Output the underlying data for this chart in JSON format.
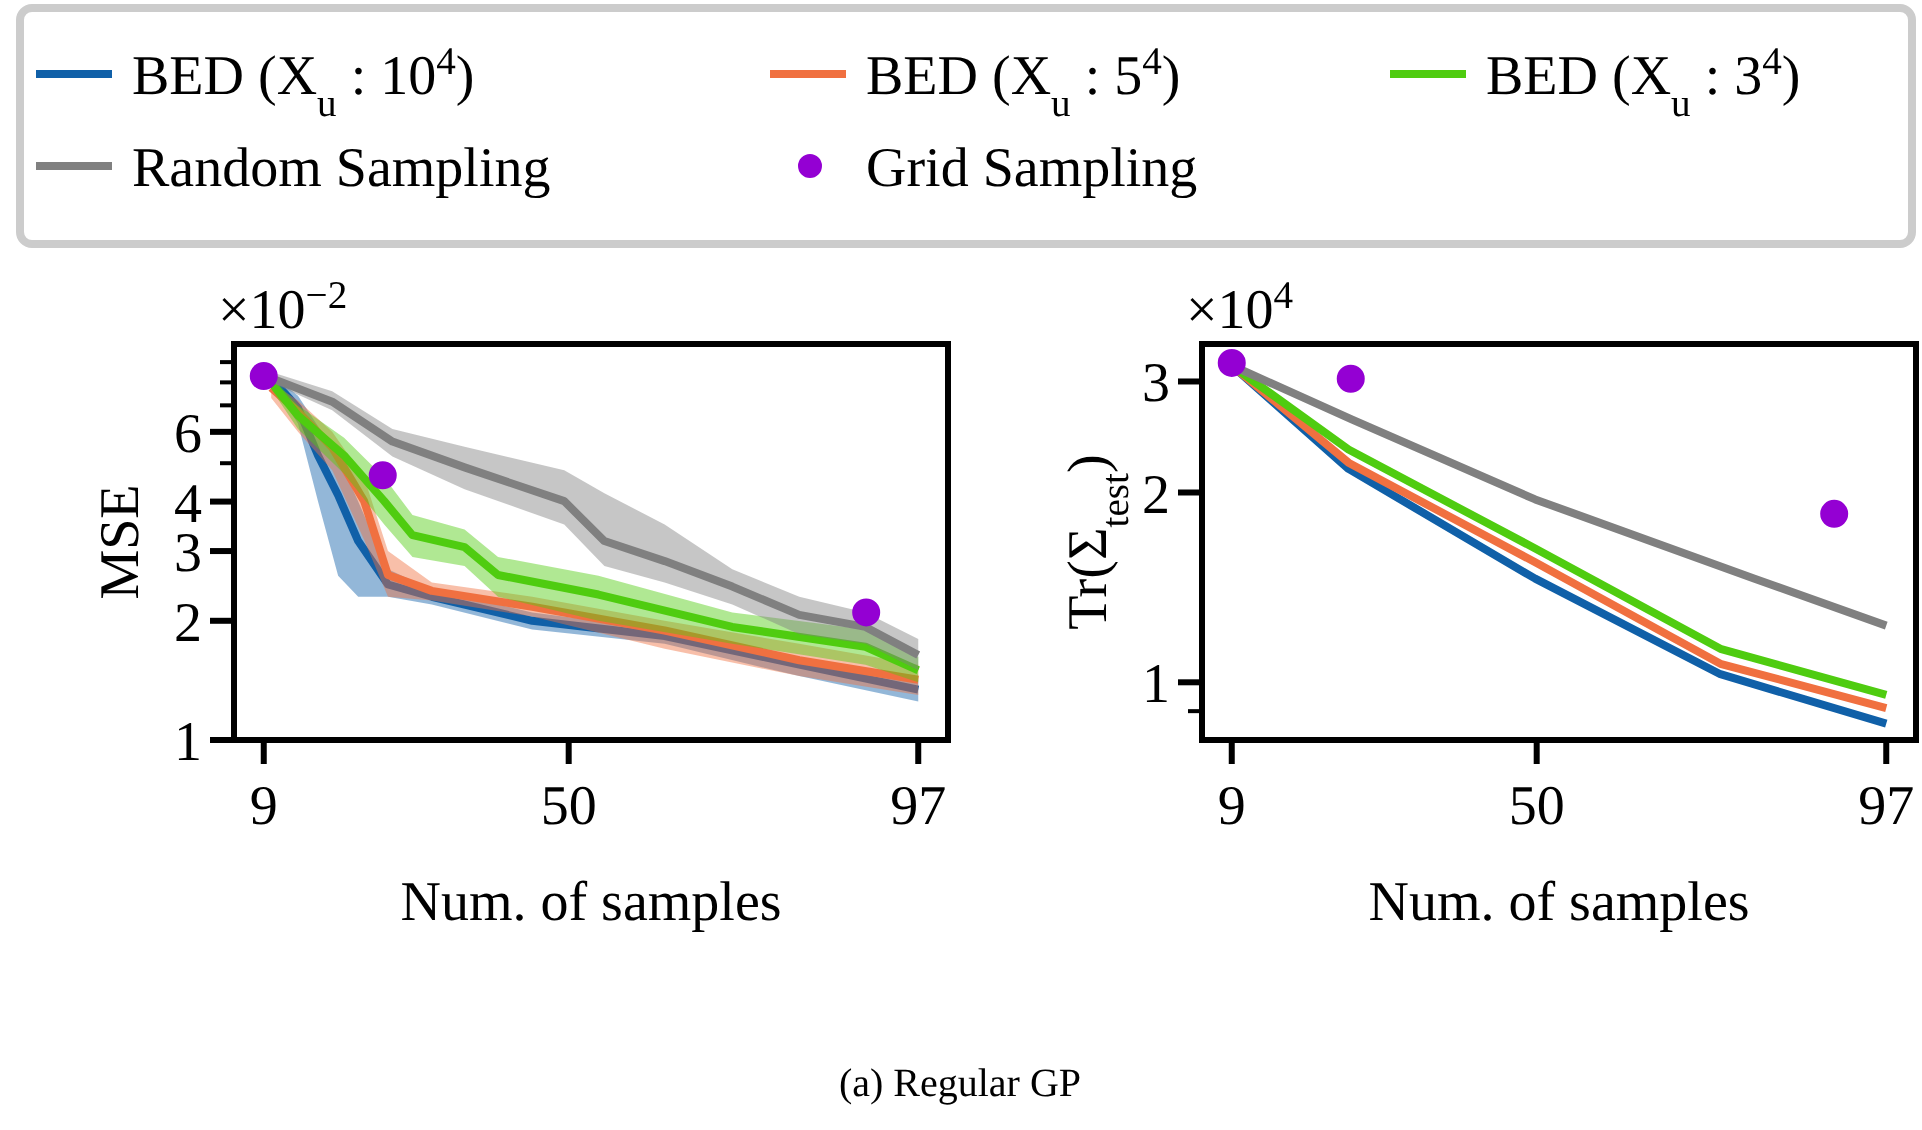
{
  "chart_data": [
    {
      "type": "line",
      "xlabel": "Num. of samples",
      "ylabel": "MSE",
      "log": "y",
      "xlim": [
        5,
        101
      ],
      "xticks": [
        9,
        50,
        97
      ],
      "ylim": [
        1,
        10
      ],
      "yticks": [
        1,
        2,
        3,
        4,
        {
          "value": 5,
          "label": null
        },
        6,
        {
          "value": 7,
          "label": null
        },
        {
          "value": 8,
          "label": null
        },
        {
          "value": 9,
          "label": null
        }
      ],
      "legend": "top",
      "annotations": [
        "×10$^{−2}$",
        "(a) Regular GP"
      ],
      "series": [
        {
          "name": "BED (X$_{u}$ : 10$^{4}$)",
          "color": "#1060a8",
          "x": [
            10,
            13.6,
            16.3,
            19,
            21.7,
            25.7,
            31.6,
            45.1,
            62.9,
            81,
            97
          ],
          "values": [
            8.2,
            6.9,
            5.23,
            4.15,
            3.18,
            2.47,
            2.3,
            2.0,
            1.83,
            1.55,
            1.34
          ],
          "lower": [
            8.0,
            6.3,
            4.0,
            2.6,
            2.3,
            2.3,
            2.2,
            1.9,
            1.75,
            1.45,
            1.25
          ],
          "upper": [
            8.4,
            7.4,
            6.2,
            5.2,
            4.0,
            2.7,
            2.4,
            2.1,
            1.9,
            1.6,
            1.42
          ]
        },
        {
          "name": "BED (X$_{u}$ : 5$^{4}$)",
          "color": "#f07040",
          "x": [
            10,
            13.6,
            18.2,
            22.5,
            25.7,
            31.6,
            45.1,
            62.9,
            81,
            97
          ],
          "values": [
            7.75,
            6.75,
            5.48,
            4.01,
            2.61,
            2.38,
            2.17,
            1.89,
            1.59,
            1.42
          ],
          "lower": [
            7.3,
            6.0,
            4.8,
            3.2,
            2.3,
            2.25,
            2.05,
            1.7,
            1.45,
            1.3
          ],
          "upper": [
            8.0,
            7.2,
            6.0,
            4.6,
            3.0,
            2.5,
            2.3,
            2.0,
            1.75,
            1.55
          ]
        },
        {
          "name": "BED (X$_{u}$ : 3$^{4}$)",
          "color": "#4fcc10",
          "x": [
            10,
            13.6,
            19.8,
            25.2,
            29,
            36,
            40.5,
            54,
            72,
            89.9,
            97
          ],
          "values": [
            8.0,
            6.6,
            5.23,
            4.01,
            3.29,
            3.07,
            2.61,
            2.33,
            1.93,
            1.72,
            1.5
          ],
          "lower": [
            7.7,
            6.1,
            4.7,
            3.5,
            2.9,
            2.75,
            2.3,
            2.0,
            1.75,
            1.55,
            1.4
          ],
          "upper": [
            8.3,
            7.0,
            5.8,
            4.6,
            3.7,
            3.4,
            2.9,
            2.6,
            2.1,
            1.9,
            1.62
          ]
        },
        {
          "name": "Random Sampling",
          "color": "#808080",
          "x": [
            10,
            18.2,
            26.3,
            36,
            49.4,
            54.8,
            62.9,
            72,
            81,
            89.9,
            97
          ],
          "values": [
            8.2,
            7.15,
            5.67,
            4.88,
            4.01,
            3.18,
            2.83,
            2.44,
            2.07,
            1.93,
            1.64
          ],
          "lower": [
            8.0,
            6.8,
            5.2,
            4.3,
            3.5,
            2.75,
            2.5,
            2.2,
            1.85,
            1.75,
            1.5
          ],
          "upper": [
            8.5,
            7.6,
            6.1,
            5.5,
            4.8,
            4.2,
            3.5,
            2.7,
            2.3,
            2.1,
            1.8
          ]
        },
        {
          "name": "Grid Sampling",
          "type": "scatter",
          "marker": "circle",
          "color": "#9400d3",
          "x": [
            9,
            25,
            90
          ],
          "values": [
            8.3,
            4.66,
            2.1
          ]
        }
      ]
    },
    {
      "type": "line",
      "xlabel": "Num. of samples",
      "ylabel": "Tr(Σ$_{test}$)",
      "log": "y",
      "xlim": [
        5,
        101
      ],
      "xticks": [
        9,
        50,
        97
      ],
      "ylim": [
        0.81,
        3.44
      ],
      "yticks": [
        {
          "value": 0.9,
          "label": null
        },
        1,
        2,
        3
      ],
      "annotations": [
        "×10$^{4}$"
      ],
      "series": [
        {
          "color": "#1060a8",
          "x": [
            9,
            24.7,
            49.8,
            74.7,
            97
          ],
          "values": [
            3.18,
            2.18,
            1.46,
            1.03,
            0.86
          ]
        },
        {
          "color": "#f07040",
          "x": [
            9,
            24.7,
            49.8,
            74.7,
            97
          ],
          "values": [
            3.18,
            2.23,
            1.55,
            1.07,
            0.91
          ]
        },
        {
          "color": "#4fcc10",
          "x": [
            9,
            24.7,
            49.8,
            74.7,
            97
          ],
          "values": [
            3.18,
            2.34,
            1.63,
            1.13,
            0.955
          ]
        },
        {
          "color": "#808080",
          "x": [
            9,
            25.2,
            49.8,
            79.3,
            97
          ],
          "values": [
            3.18,
            2.61,
            1.95,
            1.46,
            1.23
          ]
        },
        {
          "type": "scatter",
          "marker": "circle",
          "color": "#9400d3",
          "x": [
            9,
            25,
            90
          ],
          "values": [
            3.21,
            3.03,
            1.85
          ]
        }
      ]
    }
  ]
}
